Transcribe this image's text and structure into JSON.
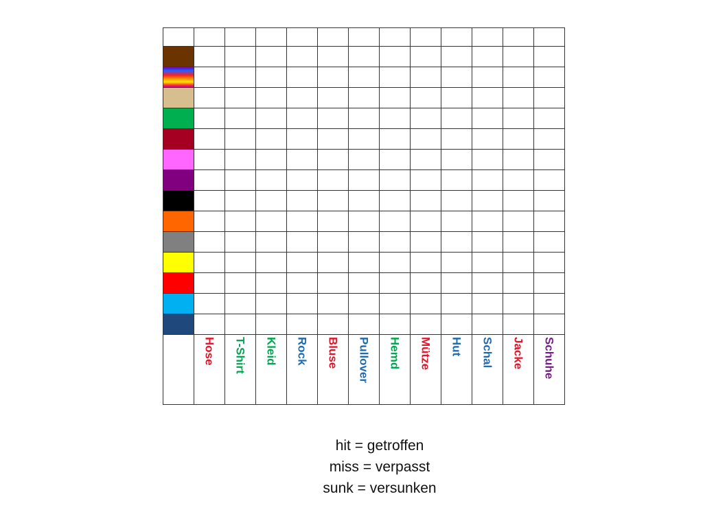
{
  "colors": [
    {
      "name": "brown",
      "fill": "#6b3300"
    },
    {
      "name": "rainbow",
      "fill": "linear-gradient(to bottom, #3a1ccf 0%, #2a5cff 15%, #ff2020 38%, #ff8c00 55%, #ffe600 72%, #ff3030 88%, #b000b0 100%)"
    },
    {
      "name": "beige",
      "fill": "#d6be8e"
    },
    {
      "name": "green",
      "fill": "#00b050"
    },
    {
      "name": "dark-red",
      "fill": "#a50021"
    },
    {
      "name": "pink",
      "fill": "#ff66ff"
    },
    {
      "name": "purple",
      "fill": "#800080"
    },
    {
      "name": "black",
      "fill": "#000000"
    },
    {
      "name": "orange",
      "fill": "#ff6600"
    },
    {
      "name": "grey",
      "fill": "#808080"
    },
    {
      "name": "yellow",
      "fill": "#ffff00"
    },
    {
      "name": "red",
      "fill": "#ff0000"
    },
    {
      "name": "light-blue",
      "fill": "#00b0f0"
    },
    {
      "name": "dark-blue",
      "fill": "#1f497d"
    }
  ],
  "clothes": [
    {
      "label": "Hose",
      "color": "#e0162b"
    },
    {
      "label": "T-Shirt",
      "color": "#00a651"
    },
    {
      "label": "Kleid",
      "color": "#00a651"
    },
    {
      "label": "Rock",
      "color": "#1f6bb0"
    },
    {
      "label": "Bluse",
      "color": "#e0162b"
    },
    {
      "label": "Pullover",
      "color": "#1f6bb0"
    },
    {
      "label": "Hemd",
      "color": "#00a651"
    },
    {
      "label": "Mütze",
      "color": "#e0162b"
    },
    {
      "label": "Hut",
      "color": "#1f6bb0"
    },
    {
      "label": "Schal",
      "color": "#1f6bb0"
    },
    {
      "label": "Jacke",
      "color": "#e0162b"
    },
    {
      "label": "Schuhe",
      "color": "#7a1a8c"
    }
  ],
  "legend": {
    "hit": "hit = getroffen",
    "miss": "miss = verpasst",
    "sunk": "sunk = versunken"
  }
}
